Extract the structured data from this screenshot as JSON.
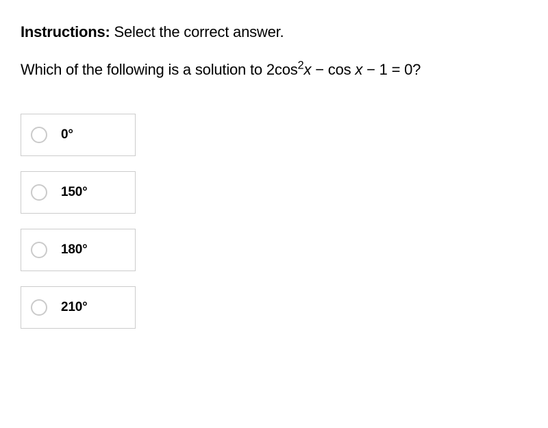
{
  "instructions": {
    "label": "Instructions:",
    "text": "Select the correct answer."
  },
  "question": {
    "prefix": "Which of the following is a solution to 2cos",
    "sup1": "2",
    "var1": "x",
    "mid": " − cos ",
    "var2": "x",
    "suffix": " − 1 = 0?"
  },
  "options": [
    {
      "label": "0°"
    },
    {
      "label": "150°"
    },
    {
      "label": "180°"
    },
    {
      "label": "210°"
    }
  ],
  "styles": {
    "background": "#ffffff",
    "text_color": "#000000",
    "border_color": "#cccccc",
    "radio_border": "#cacaca",
    "option_width": 168,
    "option_height": 62,
    "option_gap": 22,
    "font_family": "Helvetica Neue",
    "instructions_fontsize": 22,
    "question_fontsize": 22,
    "option_label_fontsize": 19
  }
}
